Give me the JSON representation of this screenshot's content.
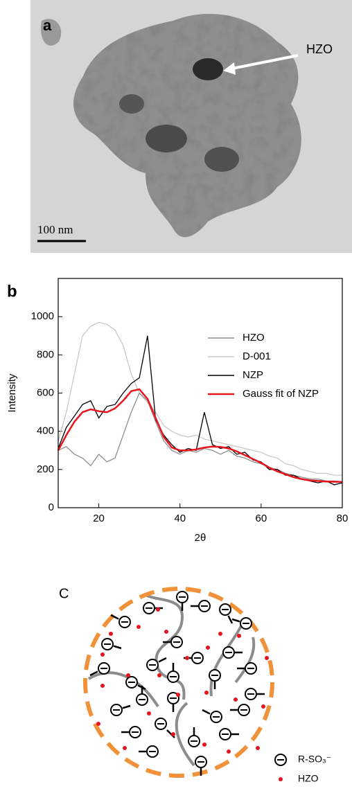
{
  "panel_a": {
    "label": "a",
    "annotation": "HZO",
    "scale_bar": "100 nm"
  },
  "chart_data": {
    "type": "line",
    "label": "b",
    "xlabel": "2θ",
    "ylabel": "Intensity",
    "x": [
      10,
      12,
      14,
      16,
      18,
      20,
      22,
      24,
      26,
      28,
      30,
      32,
      34,
      36,
      38,
      40,
      42,
      44,
      46,
      48,
      50,
      52,
      54,
      56,
      58,
      60,
      62,
      64,
      66,
      68,
      70,
      72,
      74,
      76,
      78,
      80
    ],
    "series": [
      {
        "name": "HZO",
        "color": "#8c8c8c",
        "values": [
          300,
          320,
          280,
          260,
          220,
          280,
          240,
          260,
          380,
          500,
          600,
          560,
          450,
          350,
          300,
          280,
          300,
          290,
          310,
          300,
          280,
          300,
          270,
          260,
          240,
          230,
          210,
          200,
          180,
          170,
          160,
          150,
          150,
          140,
          140,
          135
        ]
      },
      {
        "name": "D-001",
        "color": "#c8c8c8",
        "values": [
          350,
          500,
          700,
          900,
          950,
          970,
          960,
          930,
          850,
          700,
          600,
          550,
          500,
          430,
          400,
          380,
          370,
          380,
          360,
          350,
          340,
          330,
          320,
          310,
          300,
          290,
          270,
          260,
          230,
          220,
          200,
          190,
          180,
          180,
          170,
          170
        ]
      },
      {
        "name": "NZP",
        "color": "#000000",
        "values": [
          310,
          420,
          480,
          540,
          560,
          470,
          530,
          540,
          600,
          650,
          680,
          900,
          460,
          380,
          330,
          290,
          310,
          300,
          500,
          330,
          310,
          320,
          280,
          290,
          250,
          240,
          200,
          200,
          170,
          170,
          150,
          140,
          130,
          140,
          120,
          130
        ]
      },
      {
        "name": "Gauss fit of NZP",
        "color": "#e8141c",
        "values": [
          300,
          380,
          450,
          500,
          515,
          505,
          500,
          520,
          560,
          610,
          620,
          570,
          470,
          370,
          315,
          300,
          300,
          305,
          315,
          320,
          318,
          310,
          295,
          275,
          255,
          235,
          210,
          190,
          175,
          160,
          150,
          143,
          140,
          137,
          136,
          135
        ]
      }
    ],
    "xlim": [
      10,
      80
    ],
    "xticks": [
      20,
      40,
      60,
      80
    ],
    "ylim": [
      0,
      1200
    ],
    "yticks": [
      0,
      200,
      400,
      600,
      800,
      1000
    ]
  },
  "panel_c": {
    "label": "C",
    "legend": [
      {
        "label": "R-SO₃⁻"
      },
      {
        "label": "HZO"
      }
    ]
  }
}
